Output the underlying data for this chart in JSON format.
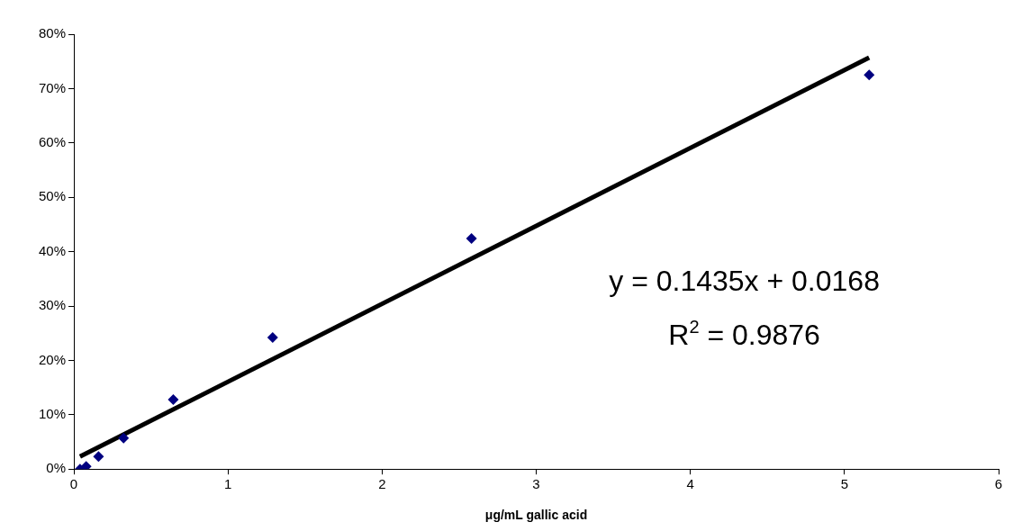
{
  "chart_data": {
    "type": "scatter",
    "xlabel": "μg/mL gallic acid",
    "x": [
      0.04,
      0.08,
      0.16,
      0.3225,
      0.645,
      1.29,
      2.58,
      5.16
    ],
    "series": [
      {
        "type": "scatter",
        "color": "#000080",
        "values": [
          0,
          0.5,
          2.3,
          5.7,
          12.8,
          24.2,
          42.4,
          72.5
        ],
        "marker": "diamond"
      },
      {
        "type": "line",
        "color": "#000000",
        "x": [
          0.04,
          5.16
        ],
        "values": [
          2.3,
          75.7
        ],
        "marker": "none",
        "line_style": "solid"
      }
    ],
    "xlim": [
      0,
      6
    ],
    "xticks": [
      0,
      1,
      2,
      3,
      4,
      5,
      6
    ],
    "ylim": [
      0,
      80
    ],
    "yticks": [
      {
        "value": 0,
        "label": "0%"
      },
      {
        "value": 10,
        "label": "10%"
      },
      {
        "value": 20,
        "label": "20%"
      },
      {
        "value": 30,
        "label": "30%"
      },
      {
        "value": 40,
        "label": "40%"
      },
      {
        "value": 50,
        "label": "50%"
      },
      {
        "value": 60,
        "label": "60%"
      },
      {
        "value": 70,
        "label": "70%"
      },
      {
        "value": 80,
        "label": "80%"
      }
    ],
    "annotations": [
      "y = 0.1435x + 0.0168",
      "R$^{2}$ = 0.9876"
    ],
    "grid": false,
    "legend": false
  }
}
